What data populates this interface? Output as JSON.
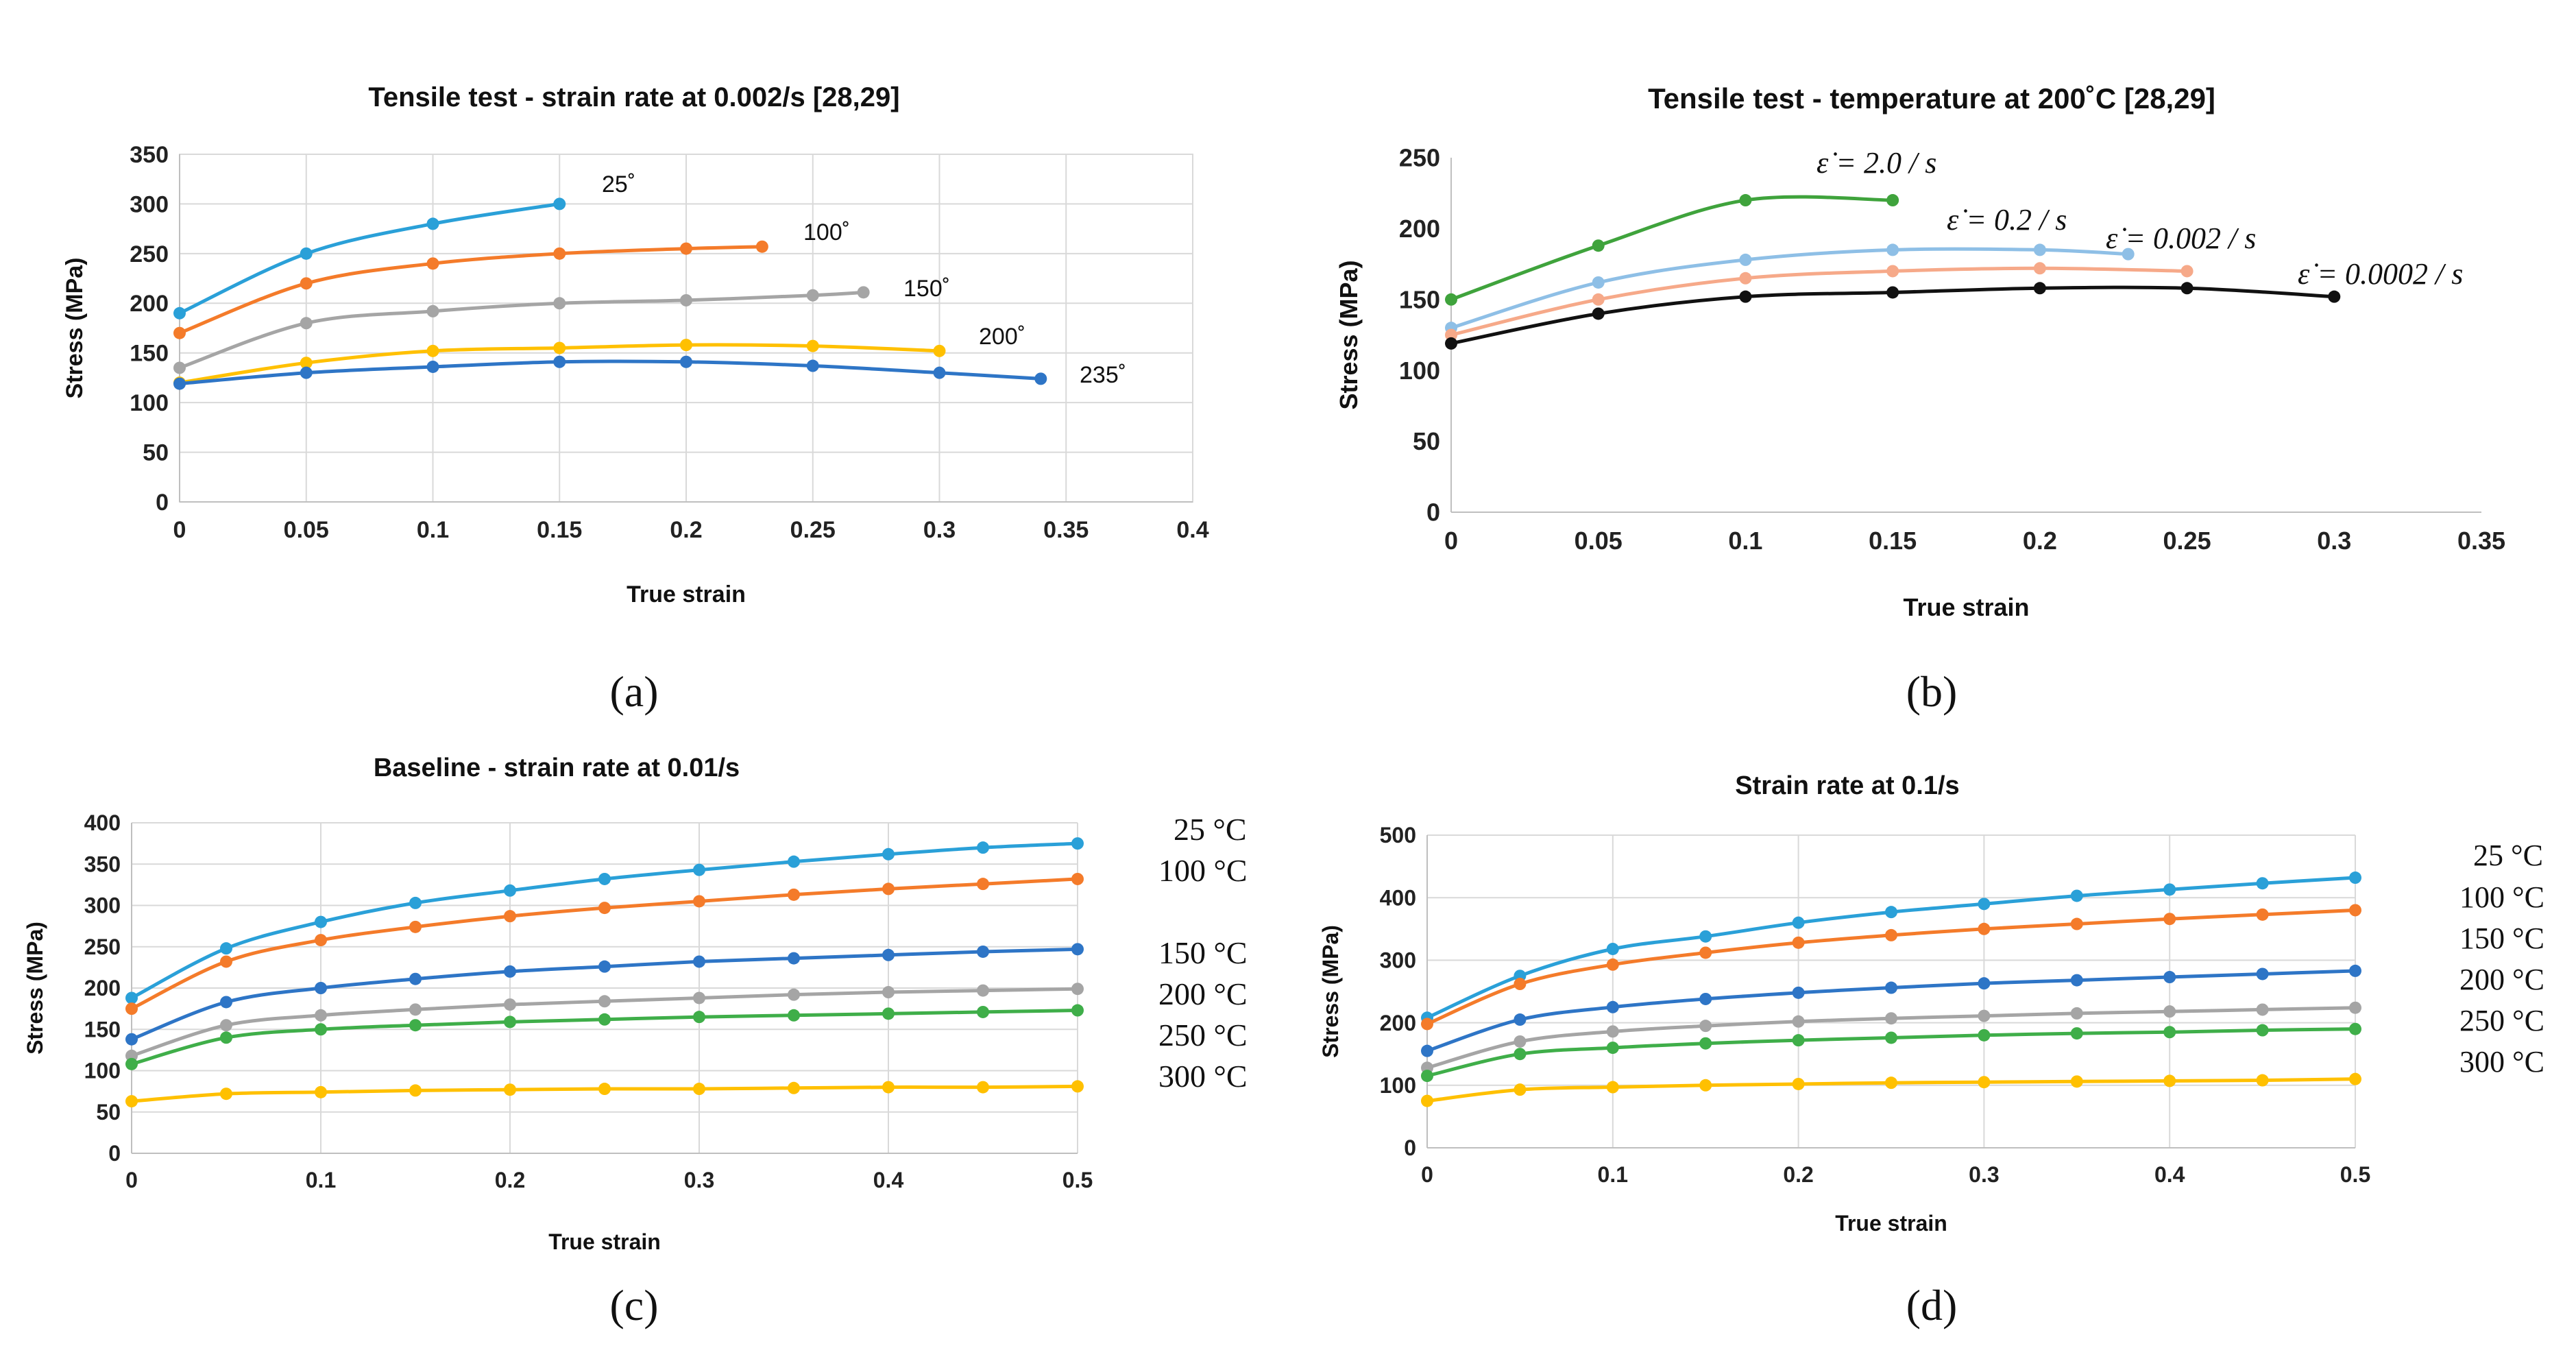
{
  "chart_data": [
    {
      "panel_label": "(a)",
      "type": "line",
      "title": "Tensile test - strain rate at 0.002/s [28,29]",
      "xlabel": "True strain",
      "ylabel": "Stress (MPa)",
      "xlim": [
        0,
        0.4
      ],
      "ylim": [
        0,
        350
      ],
      "xticks": [
        0,
        0.05,
        0.1,
        0.15,
        0.2,
        0.25,
        0.3,
        0.35,
        0.4
      ],
      "xtick_labels": [
        "0",
        "0.05",
        "0.1",
        "0.15",
        "0.2",
        "0.25",
        "0.3",
        "0.35",
        "0.4"
      ],
      "yticks": [
        0,
        50,
        100,
        150,
        200,
        250,
        300,
        350
      ],
      "ytick_labels": [
        "0",
        "50",
        "100",
        "150",
        "200",
        "250",
        "300",
        "350"
      ],
      "grid": true,
      "series": [
        {
          "name": "25˚",
          "color": "#2AA0D8",
          "x": [
            0,
            0.05,
            0.1,
            0.15
          ],
          "y": [
            190,
            250,
            280,
            300
          ]
        },
        {
          "name": "100˚",
          "color": "#F47B2A",
          "x": [
            0,
            0.05,
            0.1,
            0.15,
            0.2,
            0.23
          ],
          "y": [
            170,
            220,
            240,
            250,
            255,
            257
          ]
        },
        {
          "name": "150˚",
          "color": "#A5A5A5",
          "x": [
            0,
            0.05,
            0.1,
            0.15,
            0.2,
            0.25,
            0.27
          ],
          "y": [
            135,
            180,
            192,
            200,
            203,
            208,
            211
          ]
        },
        {
          "name": "200˚",
          "color": "#FFC000",
          "x": [
            0,
            0.05,
            0.1,
            0.15,
            0.2,
            0.25,
            0.3
          ],
          "y": [
            120,
            140,
            152,
            155,
            158,
            157,
            152
          ]
        },
        {
          "name": "235˚",
          "color": "#2E75C6",
          "x": [
            0,
            0.05,
            0.1,
            0.15,
            0.2,
            0.25,
            0.3,
            0.34
          ],
          "y": [
            119,
            130,
            136,
            141,
            141,
            137,
            130,
            124
          ]
        }
      ]
    },
    {
      "panel_label": "(b)",
      "type": "line",
      "title": "Tensile test - temperature at 200˚C [28,29]",
      "xlabel": "True strain",
      "ylabel": "Stress (MPa)",
      "xlim": [
        0,
        0.35
      ],
      "ylim": [
        0,
        250
      ],
      "xticks": [
        0,
        0.05,
        0.1,
        0.15,
        0.2,
        0.25,
        0.3,
        0.35
      ],
      "xtick_labels": [
        "0",
        "0.05",
        "0.1",
        "0.15",
        "0.2",
        "0.25",
        "0.3",
        "0.35"
      ],
      "yticks": [
        0,
        50,
        100,
        150,
        200,
        250
      ],
      "ytick_labels": [
        "0",
        "50",
        "100",
        "150",
        "200",
        "250"
      ],
      "grid": false,
      "series": [
        {
          "name": "ε̇ = 2.0 / s",
          "color": "#3FA33C",
          "x": [
            0,
            0.05,
            0.1,
            0.15
          ],
          "y": [
            150,
            188,
            220,
            220
          ]
        },
        {
          "name": "ε̇ = 0.2 / s",
          "color": "#8EBFE6",
          "x": [
            0,
            0.05,
            0.1,
            0.15,
            0.2,
            0.23
          ],
          "y": [
            130,
            162,
            178,
            185,
            185,
            182
          ]
        },
        {
          "name": "ε̇ = 0.002 / s",
          "color": "#F6A989",
          "x": [
            0,
            0.05,
            0.1,
            0.15,
            0.2,
            0.25
          ],
          "y": [
            125,
            150,
            165,
            170,
            172,
            170
          ]
        },
        {
          "name": "ε̇ = 0.0002 / s",
          "color": "#111111",
          "x": [
            0,
            0.05,
            0.1,
            0.15,
            0.2,
            0.25,
            0.3
          ],
          "y": [
            119,
            140,
            152,
            155,
            158,
            158,
            152
          ]
        }
      ]
    },
    {
      "panel_label": "(c)",
      "type": "line",
      "title": "Baseline - strain rate at 0.01/s",
      "xlabel": "True strain",
      "ylabel": "Stress (MPa)",
      "xlim": [
        0,
        0.5
      ],
      "ylim": [
        0,
        400
      ],
      "xticks": [
        0,
        0.1,
        0.2,
        0.3,
        0.4,
        0.5
      ],
      "xtick_labels": [
        "0",
        "0.1",
        "0.2",
        "0.3",
        "0.4",
        "0.5"
      ],
      "yticks": [
        0,
        50,
        100,
        150,
        200,
        250,
        300,
        350,
        400
      ],
      "ytick_labels": [
        "0",
        "50",
        "100",
        "150",
        "200",
        "250",
        "300",
        "350",
        "400"
      ],
      "grid": true,
      "x": [
        0,
        0.05,
        0.1,
        0.15,
        0.2,
        0.25,
        0.3,
        0.35,
        0.4,
        0.45,
        0.5
      ],
      "series": [
        {
          "name": "25 °C",
          "color": "#2AA0D8",
          "values": [
            188,
            248,
            280,
            303,
            318,
            332,
            343,
            353,
            362,
            370,
            375
          ]
        },
        {
          "name": "100 °C",
          "color": "#F47B2A",
          "values": [
            175,
            232,
            258,
            274,
            287,
            297,
            305,
            313,
            320,
            326,
            332
          ]
        },
        {
          "name": "150 °C",
          "color": "#2E75C6",
          "values": [
            138,
            183,
            200,
            211,
            220,
            226,
            232,
            236,
            240,
            244,
            247
          ]
        },
        {
          "name": "200 °C",
          "color": "#A5A5A5",
          "values": [
            118,
            155,
            167,
            174,
            180,
            184,
            188,
            192,
            195,
            197,
            199
          ]
        },
        {
          "name": "250 °C",
          "color": "#3FAE49",
          "values": [
            108,
            140,
            150,
            155,
            159,
            162,
            165,
            167,
            169,
            171,
            173
          ]
        },
        {
          "name": "300 °C",
          "color": "#FFC000",
          "values": [
            63,
            72,
            74,
            76,
            77,
            78,
            78,
            79,
            80,
            80,
            81
          ]
        }
      ]
    },
    {
      "panel_label": "(d)",
      "type": "line",
      "title": "Strain rate at 0.1/s",
      "xlabel": "True strain",
      "ylabel": "Stress (MPa)",
      "xlim": [
        0,
        0.5
      ],
      "ylim": [
        0,
        500
      ],
      "xticks": [
        0,
        0.1,
        0.2,
        0.3,
        0.4,
        0.5
      ],
      "xtick_labels": [
        "0",
        "0.1",
        "0.2",
        "0.3",
        "0.4",
        "0.5"
      ],
      "yticks": [
        0,
        100,
        200,
        300,
        400,
        500
      ],
      "ytick_labels": [
        "0",
        "100",
        "200",
        "300",
        "400",
        "500"
      ],
      "grid": true,
      "x": [
        0,
        0.05,
        0.1,
        0.15,
        0.2,
        0.25,
        0.3,
        0.35,
        0.4,
        0.45,
        0.5
      ],
      "series": [
        {
          "name": "25 °C",
          "color": "#2AA0D8",
          "values": [
            208,
            275,
            318,
            338,
            360,
            377,
            390,
            403,
            413,
            423,
            432
          ]
        },
        {
          "name": "100 °C",
          "color": "#F47B2A",
          "values": [
            198,
            262,
            293,
            312,
            328,
            340,
            350,
            358,
            366,
            373,
            380
          ]
        },
        {
          "name": "150 °C",
          "color": "#2E75C6",
          "values": [
            155,
            205,
            225,
            238,
            248,
            256,
            263,
            268,
            273,
            278,
            283
          ]
        },
        {
          "name": "200 °C",
          "color": "#A5A5A5",
          "values": [
            128,
            170,
            186,
            195,
            202,
            207,
            211,
            215,
            218,
            221,
            224
          ]
        },
        {
          "name": "250 °C",
          "color": "#3FAE49",
          "values": [
            115,
            150,
            160,
            167,
            172,
            176,
            180,
            183,
            185,
            188,
            190
          ]
        },
        {
          "name": "300 °C",
          "color": "#FFC000",
          "values": [
            75,
            93,
            97,
            100,
            102,
            104,
            105,
            106,
            107,
            108,
            110
          ]
        }
      ]
    }
  ]
}
